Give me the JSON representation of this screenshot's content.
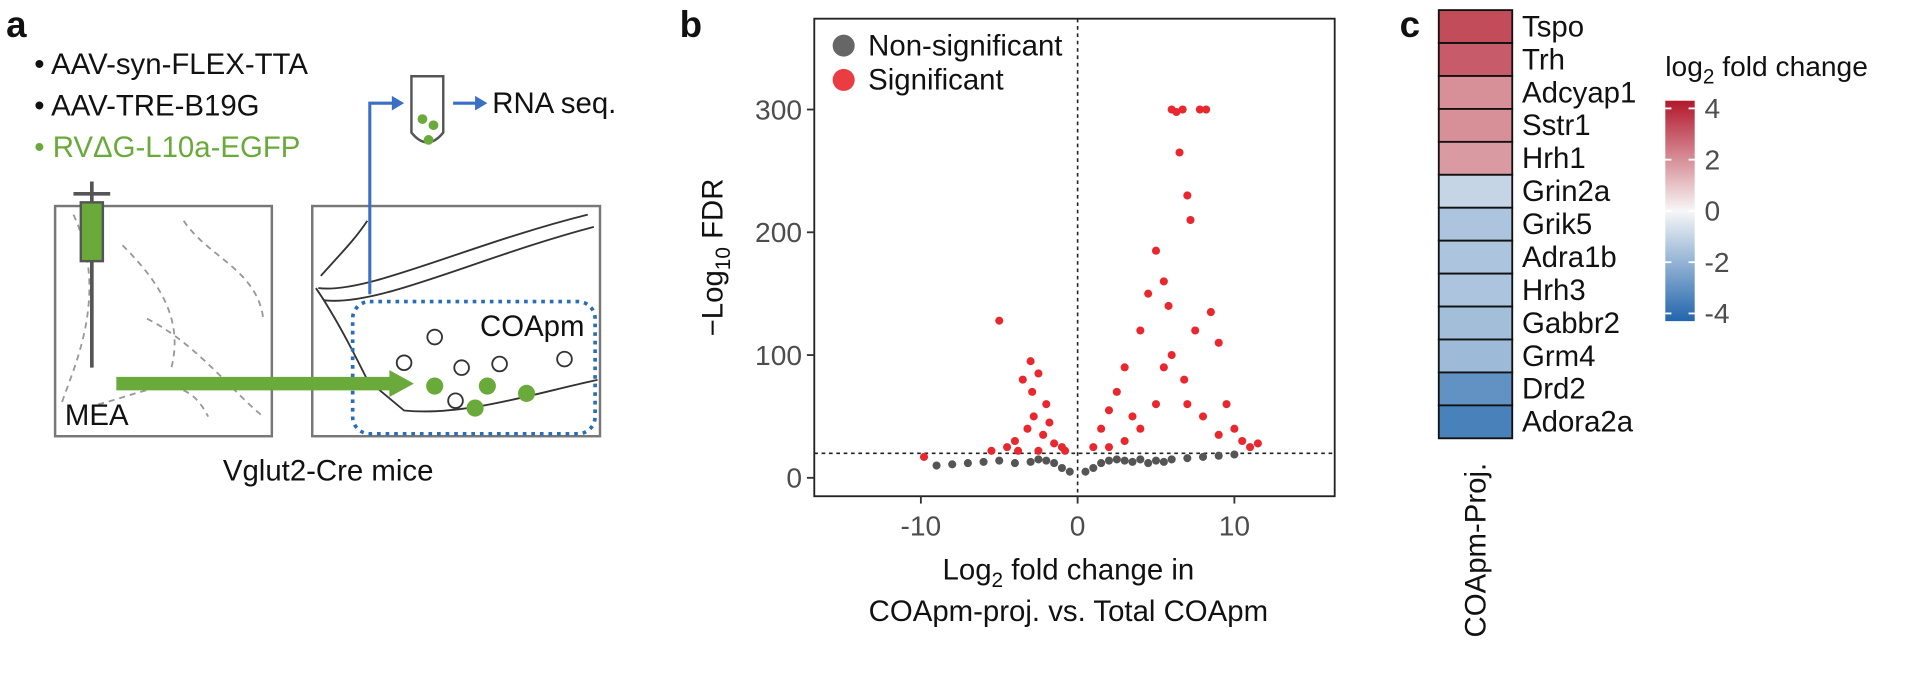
{
  "panel_labels": [
    "a",
    "b",
    "c"
  ],
  "diagram": {
    "bullets": [
      "• AAV-syn-FLEX-TTA",
      "• AAV-TRE-B19G",
      "• RVΔG-L10a-EGFP"
    ],
    "rna_seq": "RNA seq.",
    "region": "COApm",
    "source": "MEA",
    "caption": "Vglut2-Cre mice"
  },
  "chart_data": [
    {
      "type": "scatter",
      "xlabel": [
        [
          "Log",
          "2",
          " fold change in"
        ],
        [
          "COApm-proj. vs. Total COApm"
        ]
      ],
      "ylabel": [
        "−Log",
        "10",
        " FDR"
      ],
      "xlim": [
        -16.8,
        16.4
      ],
      "ylim": [
        -15,
        374
      ],
      "xticks": [
        -10,
        0,
        10
      ],
      "yticks": [
        0,
        100,
        200,
        300
      ],
      "vline": 0,
      "hline": 20,
      "legend": "top-left",
      "series": [
        {
          "name": "Non-significant",
          "color": "#555555",
          "x": [
            -9,
            -8,
            -7,
            -6,
            -5,
            -4,
            -3,
            -2.5,
            -2,
            -1.5,
            -1,
            -0.5,
            0.5,
            1,
            1.5,
            2,
            2.5,
            3,
            3.5,
            4,
            4.5,
            5,
            5.5,
            6,
            7,
            8,
            9,
            10
          ],
          "values": [
            10,
            11,
            12,
            13,
            14,
            12,
            13,
            15,
            14,
            12,
            8,
            5,
            5,
            8,
            12,
            14,
            15,
            14,
            13,
            15,
            12,
            14,
            13,
            15,
            16,
            17,
            18,
            19
          ]
        },
        {
          "name": "Significant",
          "color": "#e8282e",
          "x": [
            -9.8,
            -5,
            -3,
            -2.5,
            -3.5,
            -2,
            -2.8,
            -3.2,
            -2.2,
            -4,
            -1.5,
            -1,
            -2.5,
            -3.8,
            -1.8,
            -2.9,
            -4.5,
            -5.5,
            -0.8,
            1,
            1.5,
            2,
            2.5,
            3,
            3.5,
            4,
            4.5,
            5,
            5.5,
            5.8,
            6,
            6.3,
            6.5,
            6.7,
            7,
            7.2,
            7.8,
            8.2,
            8.5,
            9,
            9.5,
            10,
            10.5,
            11,
            11.5,
            3,
            5,
            6,
            6.8,
            7.5,
            4,
            2,
            8,
            5.5,
            7,
            9
          ],
          "values": [
            17,
            128,
            95,
            85,
            80,
            60,
            50,
            40,
            35,
            30,
            28,
            25,
            22,
            22,
            45,
            70,
            25,
            22,
            22,
            25,
            40,
            55,
            70,
            90,
            50,
            120,
            150,
            185,
            160,
            140,
            300,
            298,
            265,
            300,
            230,
            210,
            300,
            300,
            135,
            110,
            60,
            40,
            30,
            25,
            28,
            30,
            60,
            100,
            80,
            120,
            40,
            25,
            50,
            90,
            60,
            35
          ]
        }
      ]
    },
    {
      "type": "heatmap",
      "categories": [
        "Tspo",
        "Trh",
        "Adcyap1",
        "Sstr1",
        "Hrh1",
        "Grin2a",
        "Grik5",
        "Adra1b",
        "Hrh3",
        "Gabbr2",
        "Grm4",
        "Drd2",
        "Adora2a"
      ],
      "values": [
        3.3,
        3.0,
        2.0,
        2.0,
        1.8,
        -1.0,
        -1.5,
        -1.5,
        -1.5,
        -1.7,
        -1.8,
        -3.0,
        -3.5
      ],
      "column_label": "COApm-Proj.",
      "legend_title": [
        "log",
        "2",
        " fold change"
      ],
      "clim": [
        -4.3,
        4.3
      ],
      "cticks": [
        4,
        2,
        0,
        -2,
        -4
      ],
      "colormap": [
        "#2166ac",
        "#f7f7f7",
        "#b2182b"
      ]
    }
  ]
}
